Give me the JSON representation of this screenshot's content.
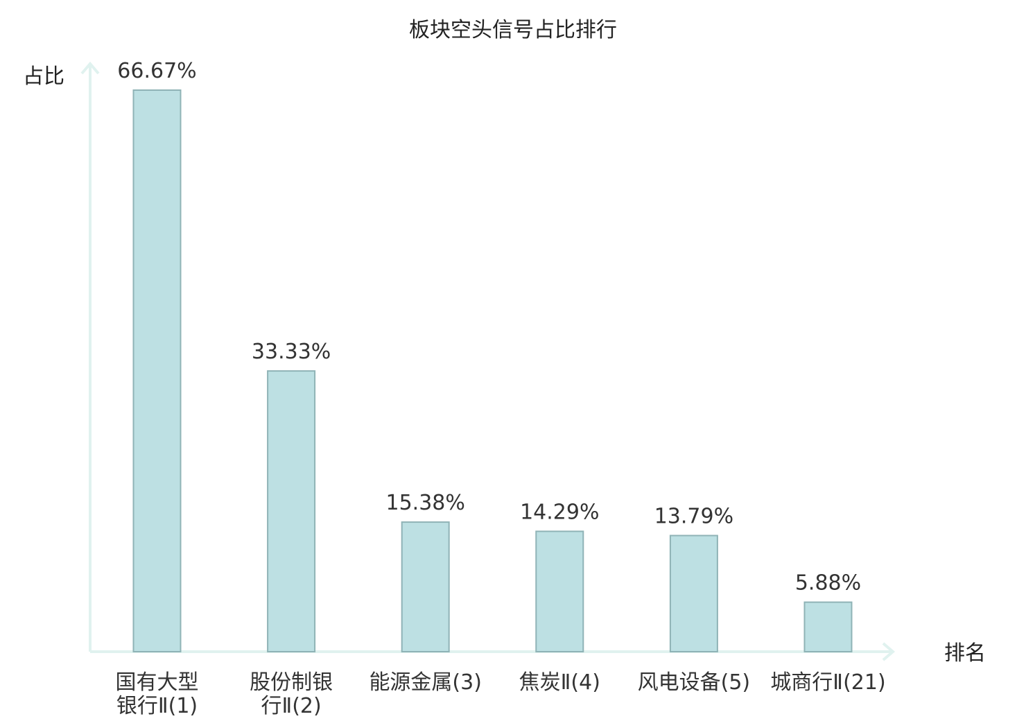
{
  "chart_data": {
    "type": "bar",
    "title": "板块空头信号占比排行",
    "ylabel": "占比",
    "xlabel": "排名",
    "categories": [
      [
        "国有大型",
        "银行Ⅱ(1)"
      ],
      [
        "股份制银",
        "行Ⅱ(2)"
      ],
      [
        "能源金属(3)"
      ],
      [
        "焦炭Ⅱ(4)"
      ],
      [
        "风电设备(5)"
      ],
      [
        "城商行Ⅱ(21)"
      ]
    ],
    "values": [
      66.67,
      33.33,
      15.38,
      14.29,
      13.79,
      5.88
    ],
    "value_labels": [
      "66.67%",
      "33.33%",
      "15.38%",
      "14.29%",
      "13.79%",
      "5.88%"
    ],
    "highlight_index": 5,
    "ylim": [
      0,
      66.67
    ],
    "grid": false,
    "colors": {
      "bar_fill": "#bde0e3",
      "bar_stroke": "#8fb3b6",
      "axis": "#e0f2ef",
      "highlight_text": "#e02020",
      "text": "#333333"
    }
  }
}
